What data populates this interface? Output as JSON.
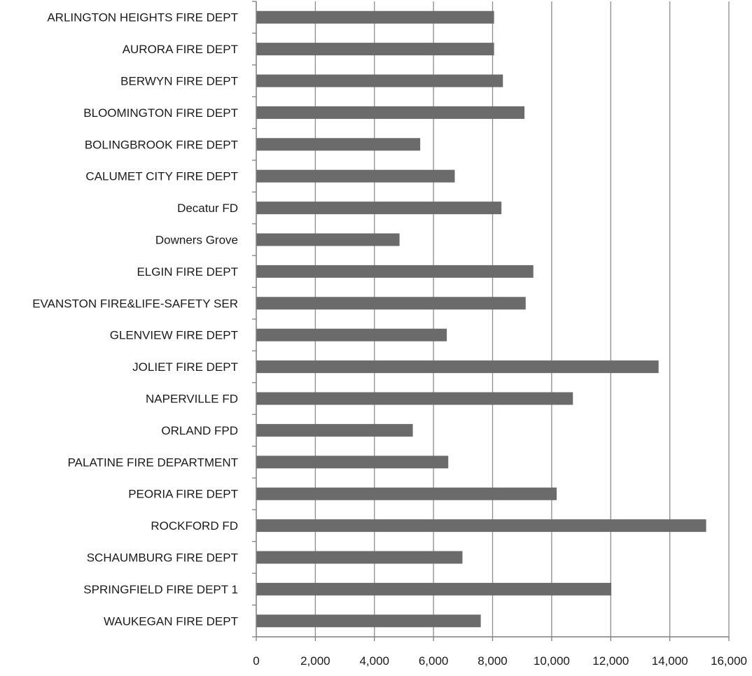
{
  "chart_data": {
    "type": "bar",
    "orientation": "horizontal",
    "categories": [
      "ARLINGTON HEIGHTS FIRE DEPT",
      "AURORA FIRE DEPT",
      "BERWYN FIRE DEPT",
      "BLOOMINGTON FIRE DEPT",
      "BOLINGBROOK FIRE DEPT",
      "CALUMET CITY FIRE DEPT",
      "Decatur FD",
      "Downers Grove",
      "ELGIN FIRE DEPT",
      "EVANSTON FIRE&LIFE-SAFETY SER",
      "GLENVIEW FIRE DEPT",
      "JOLIET FIRE DEPT",
      "NAPERVILLE FD",
      "ORLAND FPD",
      "PALATINE FIRE DEPARTMENT",
      "PEORIA FIRE DEPT",
      "ROCKFORD FD",
      "SCHAUMBURG FIRE DEPT",
      "SPRINGFIELD FIRE DEPT 1",
      "WAUKEGAN FIRE DEPT"
    ],
    "values": [
      8050,
      8050,
      8350,
      9080,
      5550,
      6720,
      8300,
      4850,
      9380,
      9120,
      6450,
      13620,
      10720,
      5300,
      6500,
      10170,
      15230,
      6980,
      12020,
      7600
    ],
    "xlim": [
      0,
      16000
    ],
    "x_ticks": [
      0,
      2000,
      4000,
      6000,
      8000,
      10000,
      12000,
      14000,
      16000
    ],
    "x_tick_labels": [
      "0",
      "2,000",
      "4,000",
      "6,000",
      "8,000",
      "10,000",
      "12,000",
      "14,000",
      "16,000"
    ],
    "grid": "vertical",
    "title": "",
    "xlabel": "",
    "ylabel": "",
    "colors": {
      "bar": "#6b6b6b",
      "grid": "#8c8c8c",
      "axis": "#7f7f7f"
    }
  }
}
